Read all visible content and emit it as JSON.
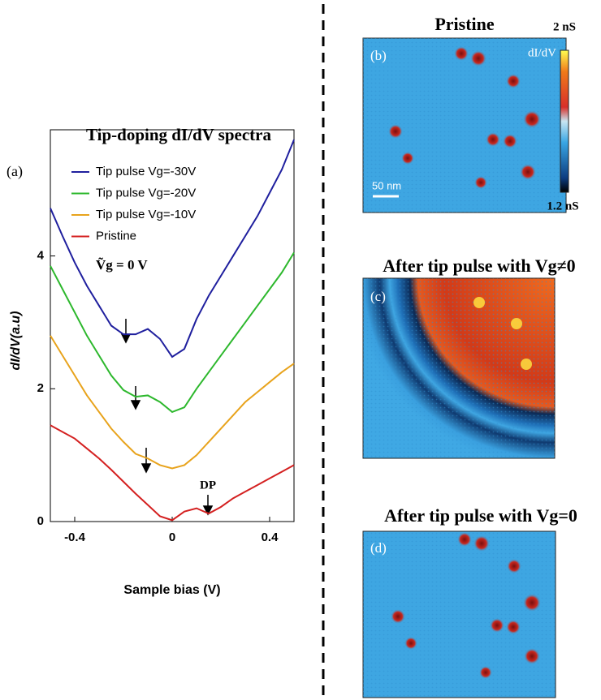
{
  "chart_data": {
    "type": "line",
    "title": "Tip-doping dI/dV spectra",
    "panel_label": "(a)",
    "xlabel": "Sample bias (V)",
    "ylabel": "dI/dV(a.u)",
    "x": [
      -0.5,
      -0.45,
      -0.4,
      -0.35,
      -0.3,
      -0.25,
      -0.2,
      -0.15,
      -0.1,
      -0.05,
      0,
      0.05,
      0.1,
      0.15,
      0.2,
      0.25,
      0.3,
      0.35,
      0.4,
      0.45,
      0.5
    ],
    "series": [
      {
        "name": "Tip pulse Vg=-30V",
        "color": "#1f1f9e",
        "values": [
          4.72,
          4.3,
          3.9,
          3.55,
          3.25,
          2.95,
          2.82,
          2.82,
          2.9,
          2.75,
          2.48,
          2.6,
          3.05,
          3.4,
          3.7,
          4.0,
          4.3,
          4.6,
          4.95,
          5.3,
          5.75
        ]
      },
      {
        "name": "Tip pulse Vg=-20V",
        "color": "#2db82d",
        "values": [
          3.85,
          3.5,
          3.15,
          2.8,
          2.5,
          2.2,
          1.98,
          1.88,
          1.9,
          1.8,
          1.65,
          1.72,
          2.0,
          2.25,
          2.5,
          2.75,
          3.0,
          3.25,
          3.5,
          3.75,
          4.05
        ]
      },
      {
        "name": "Tip pulse Vg=-10V",
        "color": "#e8a31c",
        "values": [
          2.8,
          2.5,
          2.2,
          1.9,
          1.65,
          1.4,
          1.2,
          1.02,
          0.95,
          0.85,
          0.8,
          0.85,
          1.0,
          1.2,
          1.4,
          1.6,
          1.8,
          1.95,
          2.1,
          2.25,
          2.38
        ]
      },
      {
        "name": "Pristine",
        "color": "#d42020",
        "values": [
          1.45,
          1.35,
          1.25,
          1.1,
          0.95,
          0.78,
          0.6,
          0.42,
          0.25,
          0.08,
          0.02,
          0.15,
          0.2,
          0.12,
          0.22,
          0.35,
          0.45,
          0.55,
          0.65,
          0.75,
          0.85
        ]
      }
    ],
    "xlim": [
      -0.5,
      0.5
    ],
    "ylim": [
      0,
      5.9
    ],
    "xticks": [
      -0.4,
      0,
      0.4
    ],
    "yticks": [
      0,
      2,
      4
    ],
    "gate_label": "Ṽg = 0 V",
    "dp_label": "DP"
  },
  "panels": {
    "images": [
      {
        "title": "Pristine",
        "label": "(b)"
      },
      {
        "title": "After tip pulse with Vg≠0",
        "label": "(c)"
      },
      {
        "title": "After tip pulse with Vg=0",
        "label": "(d)"
      }
    ],
    "colorbar": {
      "label": "dI/dV",
      "max": "2 nS",
      "min": "1.2 nS"
    },
    "scale_bar": "50 nm"
  }
}
